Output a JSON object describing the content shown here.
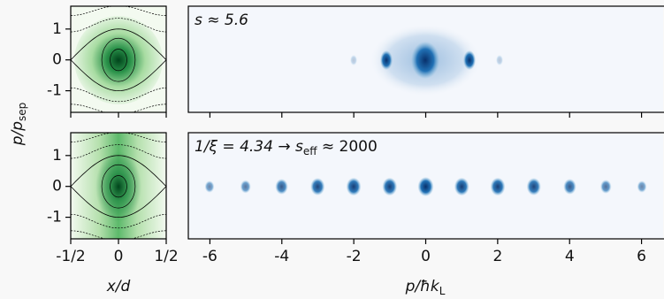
{
  "chart_data": [
    {
      "type": "phase",
      "position": "top-left",
      "xlim": [
        -0.5,
        0.5
      ],
      "xticks": [
        {
          "value": -0.5,
          "label": "-1/2"
        },
        0,
        {
          "value": 0.5,
          "label": "1/2"
        }
      ],
      "show_xticklabels": false,
      "ylim": [
        -1.7,
        1.74
      ],
      "yticks": [
        1,
        0,
        -1
      ],
      "ylabel": {
        "main": "p/p",
        "sub": "sep"
      }
    },
    {
      "type": "image",
      "position": "top-right",
      "xlim": [
        -6.6,
        6.6
      ],
      "xticks": [
        -6,
        -4,
        -2,
        0,
        2,
        4,
        6
      ],
      "show_xticklabels": false,
      "annotation": {
        "main": "s ≈ 5.6"
      }
    },
    {
      "type": "phase",
      "position": "bottom-left",
      "xlim": [
        -0.5,
        0.5
      ],
      "xticks": [
        {
          "value": -0.5,
          "label": "-1/2"
        },
        0,
        {
          "value": 0.5,
          "label": "1/2"
        }
      ],
      "show_xticklabels": true,
      "ylim": [
        -1.7,
        1.74
      ],
      "yticks": [
        1,
        0,
        -1
      ],
      "xlabel": "x/d"
    },
    {
      "type": "image",
      "position": "bottom-right",
      "xlim": [
        -6.6,
        6.6
      ],
      "xticks": [
        -6,
        -4,
        -2,
        0,
        2,
        4,
        6
      ],
      "show_xticklabels": true,
      "xlabel": {
        "main": "p/ħk",
        "sub": "L"
      },
      "annotation": {
        "main": "1/ξ = 4.34 → s",
        "sub": "eff",
        "tail": " ≈ 2000"
      }
    }
  ]
}
